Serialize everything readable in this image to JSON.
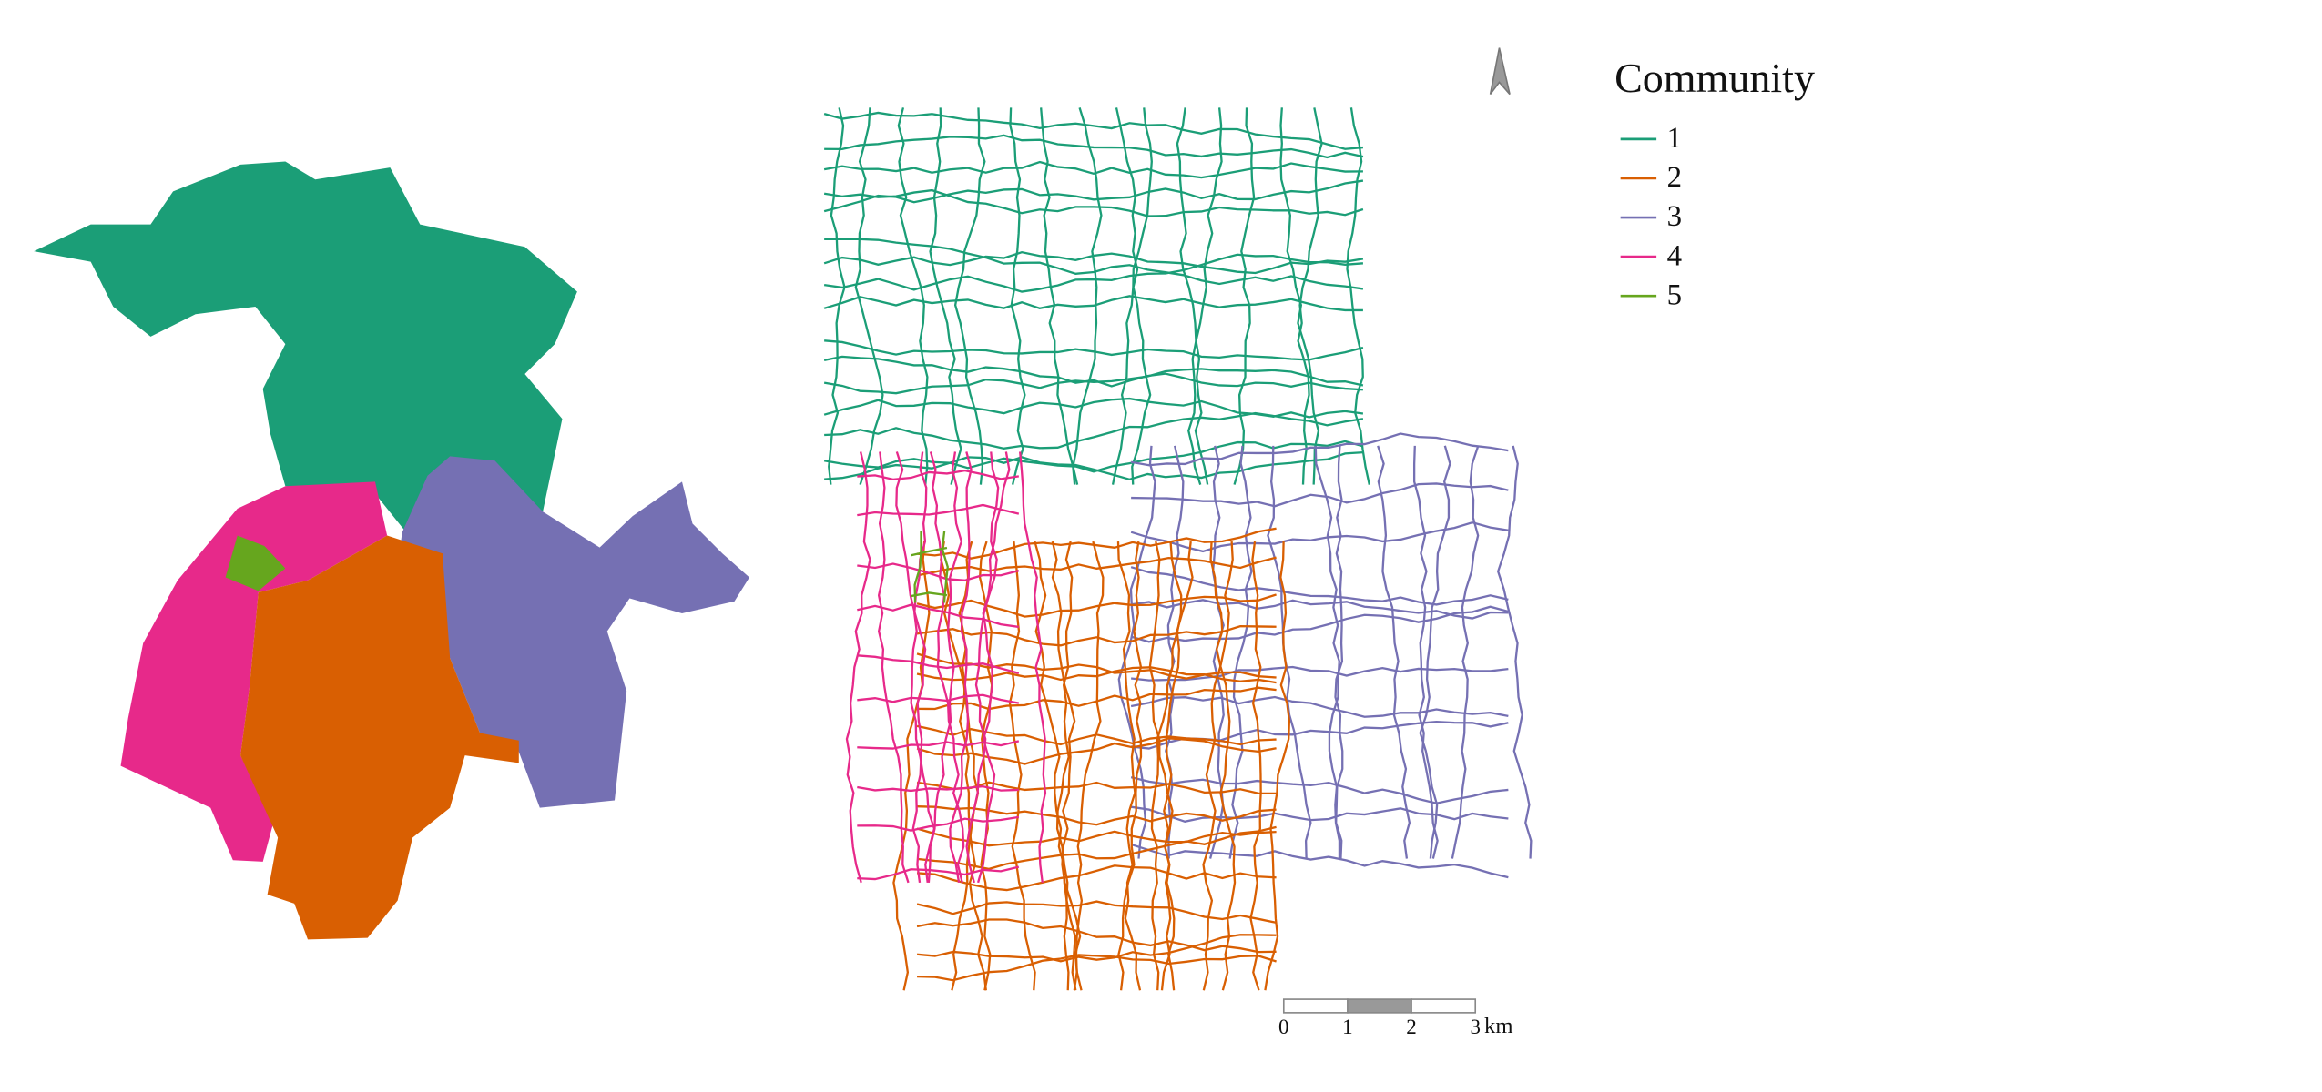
{
  "legend": {
    "title": "Community",
    "items": [
      {
        "label": "1",
        "color": "#1b9e77"
      },
      {
        "label": "2",
        "color": "#d95f02"
      },
      {
        "label": "3",
        "color": "#7570b3"
      },
      {
        "label": "4",
        "color": "#e7298a"
      },
      {
        "label": "5",
        "color": "#66a61e"
      }
    ]
  },
  "scale_bar": {
    "ticks": [
      0,
      1,
      2,
      3
    ],
    "unit": "km"
  }
}
